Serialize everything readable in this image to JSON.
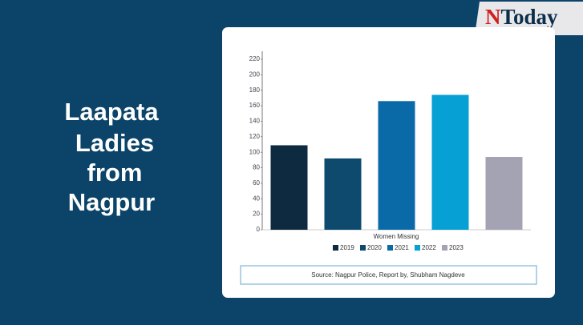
{
  "heading": [
    "Laapata",
    "Ladies",
    "from",
    "Nagpur"
  ],
  "logo": {
    "initial": "N",
    "rest": "Today"
  },
  "chart_data": {
    "type": "bar",
    "x_label": "Women Missing",
    "categories": [
      "2019",
      "2020",
      "2021",
      "2022",
      "2023"
    ],
    "values": [
      109,
      92,
      166,
      174,
      94
    ],
    "colors": [
      "#0d2a40",
      "#0d4a6e",
      "#0a6aa8",
      "#06a0d4",
      "#a3a3b3"
    ],
    "ylim": [
      0,
      220
    ],
    "yticks": [
      0,
      20,
      40,
      60,
      80,
      100,
      120,
      140,
      160,
      180,
      200,
      220
    ],
    "grid": false,
    "source": "Source: Nagpur Police, Report by, Shubham Nagdeve"
  }
}
